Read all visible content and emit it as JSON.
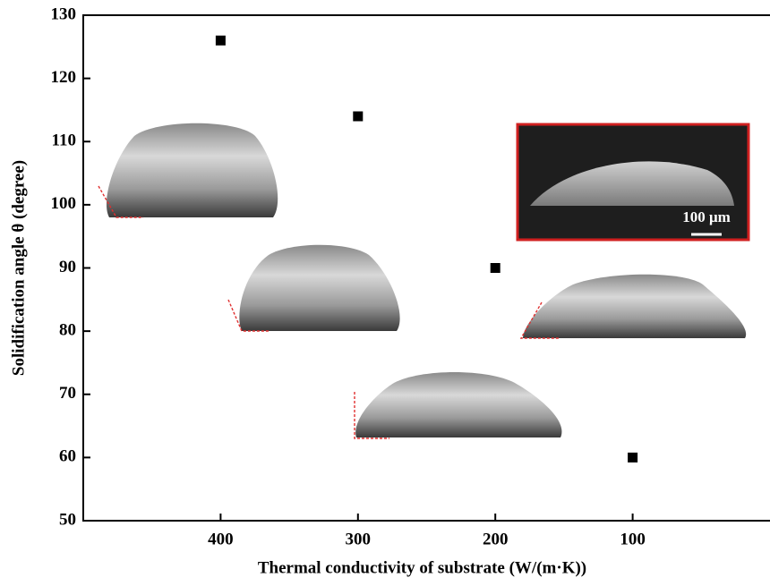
{
  "chart_data": {
    "type": "scatter",
    "x_label": "Thermal conductivity of substrate (W/(m·K))",
    "y_label": "Solidification angle θ (degree)",
    "x": [
      400,
      300,
      200,
      100
    ],
    "series": [
      {
        "color": "#000000",
        "values": [
          126,
          114,
          90,
          60
        ]
      }
    ],
    "xlim": [
      500,
      0
    ],
    "ylim": [
      50,
      130
    ],
    "xticks": [
      400,
      300,
      200,
      100
    ],
    "yticks": [
      50,
      60,
      70,
      80,
      90,
      100,
      110,
      120,
      130
    ],
    "annotations": [
      "100 μm"
    ]
  }
}
